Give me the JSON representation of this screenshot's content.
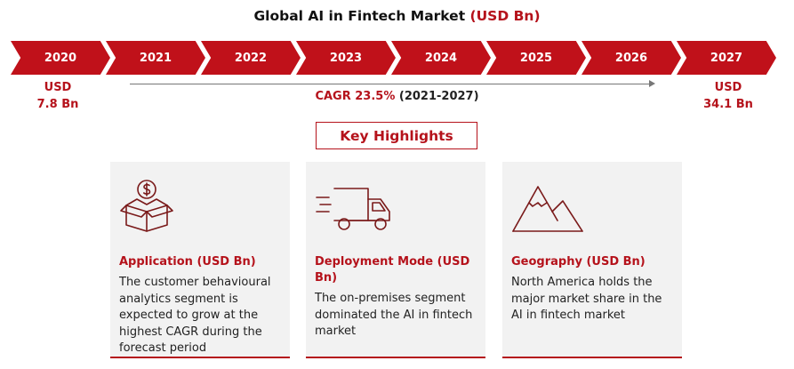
{
  "title": {
    "main": "Global AI in Fintech Market",
    "accent": "(USD Bn)"
  },
  "timeline": {
    "years": [
      "2020",
      "2021",
      "2022",
      "2023",
      "2024",
      "2025",
      "2026",
      "2027"
    ],
    "start": {
      "unit": "USD",
      "value": "7.8 Bn"
    },
    "end": {
      "unit": "USD",
      "value": "34.1 Bn"
    },
    "cagr": {
      "label": "CAGR 23.5%",
      "period": "(2021-2027)"
    }
  },
  "highlights": {
    "heading": "Key Highlights",
    "cards": [
      {
        "icon": "money-box-icon",
        "title": "Application (USD Bn)",
        "text": "The customer behavioural analytics segment is expected to grow at the highest CAGR during the forecast period"
      },
      {
        "icon": "delivery-truck-icon",
        "title": "Deployment Mode (USD Bn)",
        "text": "The on-premises segment dominated the AI in fintech market"
      },
      {
        "icon": "mountain-icon",
        "title": "Geography (USD Bn)",
        "text": "North America holds the major market share in the AI in fintech market"
      }
    ]
  },
  "colors": {
    "accent": "#b5121b",
    "banner": "#c0111a",
    "card": "#f2f2f2"
  }
}
